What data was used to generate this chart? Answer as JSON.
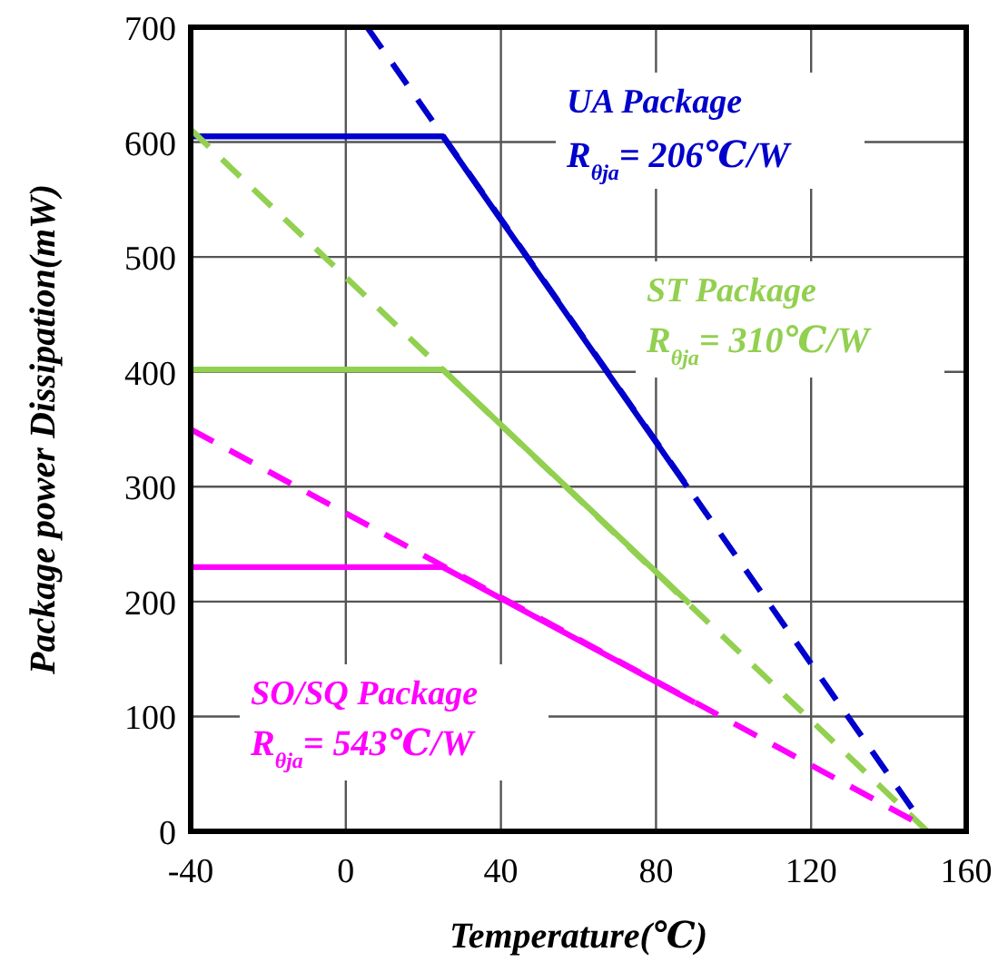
{
  "chart_data": {
    "type": "line",
    "xlabel": "Temperature(℃)",
    "ylabel": "Package power Dissipation(mW)",
    "xlim": [
      -40,
      160
    ],
    "ylim": [
      0,
      700
    ],
    "xticks": [
      -40,
      0,
      40,
      80,
      120,
      160
    ],
    "yticks": [
      0,
      100,
      200,
      300,
      400,
      500,
      600,
      700
    ],
    "grid": true,
    "marker": "none",
    "series": [
      {
        "name": "UA Package",
        "color": "#0000cc",
        "x": [
          -40,
          25,
          88
        ],
        "values": [
          605,
          605,
          300
        ],
        "line_style": "solid"
      },
      {
        "color": "#0000cc",
        "x": [
          5.5,
          146
        ],
        "values": [
          700,
          20
        ],
        "line_style": "dashed"
      },
      {
        "name": "ST Package",
        "color": "#92d050",
        "x": [
          -40,
          25,
          88.7
        ],
        "values": [
          402,
          402,
          198
        ],
        "line_style": "solid"
      },
      {
        "color": "#92d050",
        "x": [
          -40,
          150
        ],
        "values": [
          611,
          0
        ],
        "line_style": "dashed"
      },
      {
        "name": "SO/SQ Package",
        "color": "#ff00ff",
        "x": [
          -40,
          25,
          90
        ],
        "values": [
          230,
          230,
          112
        ],
        "line_style": "solid"
      },
      {
        "color": "#ff00ff",
        "x": [
          -40,
          146
        ],
        "values": [
          350,
          10
        ],
        "line_style": "dashed"
      }
    ],
    "annotations": [
      "R$_{θja}$= 206℃/W",
      "R$_{θja}$= 310℃/W",
      "R$_{θja}$= 543℃/W"
    ]
  }
}
